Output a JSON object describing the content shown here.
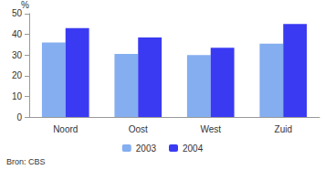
{
  "chart_data": {
    "type": "bar",
    "categories": [
      "Noord",
      "Oost",
      "West",
      "Zuid"
    ],
    "series": [
      {
        "name": "2003",
        "color": "#84aef0",
        "values": [
          36,
          30.5,
          30,
          35.5
        ]
      },
      {
        "name": "2004",
        "color": "#3a3af2",
        "values": [
          43,
          38.5,
          33.5,
          45
        ]
      }
    ],
    "y_label": "%",
    "source": "Bron: CBS",
    "ylim": [
      0,
      50
    ],
    "yticks": [
      0,
      10,
      20,
      30,
      40,
      50
    ],
    "grid": false,
    "legend": "bottom"
  }
}
